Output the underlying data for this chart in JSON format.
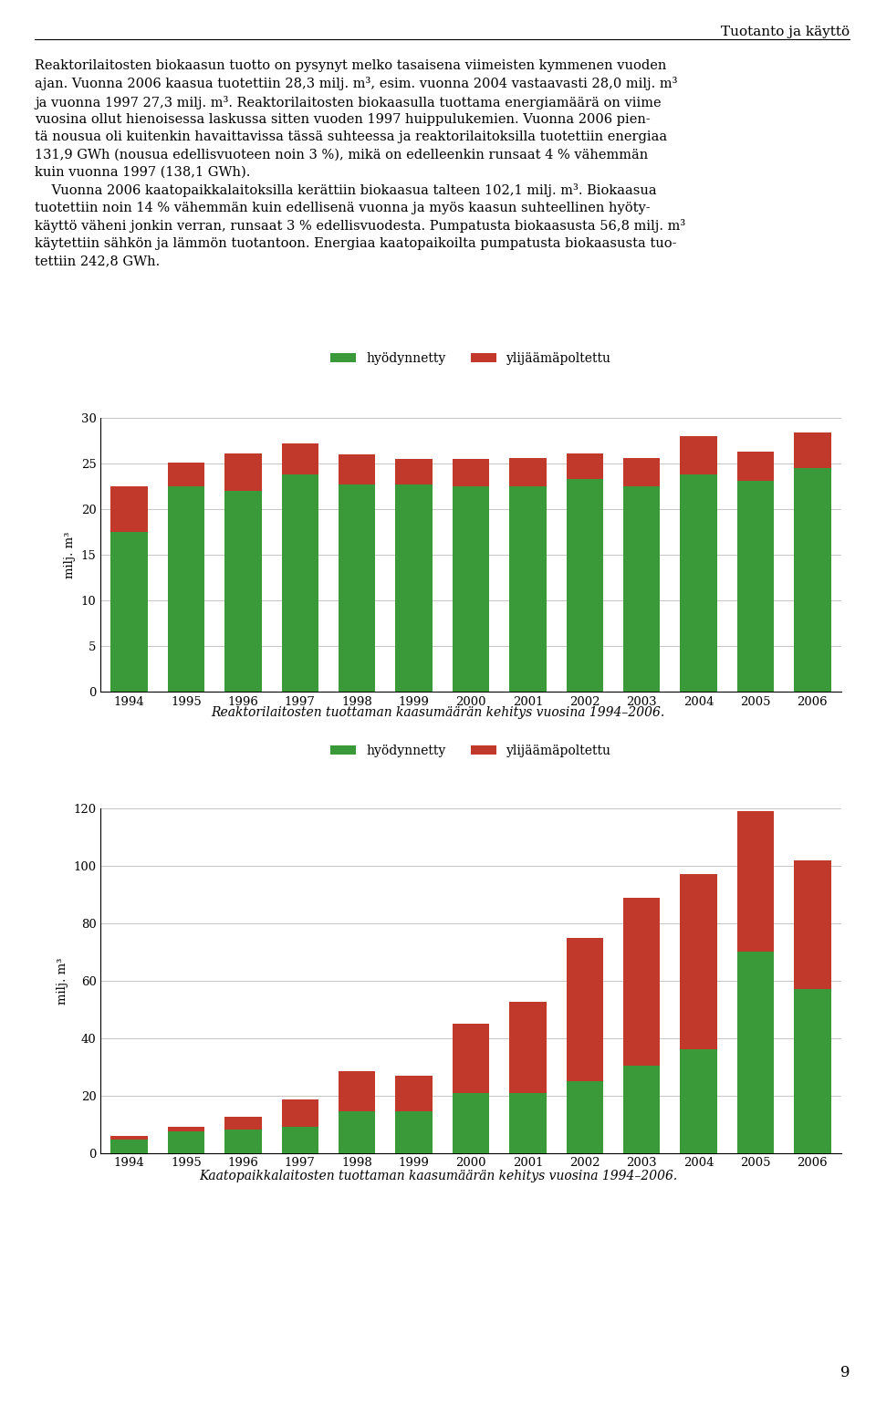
{
  "years": [
    1994,
    1995,
    1996,
    1997,
    1998,
    1999,
    2000,
    2001,
    2002,
    2003,
    2004,
    2005,
    2006
  ],
  "chart1": {
    "title": "Reaktorilaitosten tuottaman kaasumäärän kehitys vuosina 1994–2006.",
    "ylabel": "milj. m³",
    "ylim": [
      0,
      30
    ],
    "yticks": [
      0,
      5,
      10,
      15,
      20,
      25,
      30
    ],
    "green_values": [
      17.5,
      22.5,
      22.0,
      23.8,
      22.7,
      22.7,
      22.5,
      22.5,
      23.3,
      22.5,
      23.8,
      23.1,
      24.5
    ],
    "red_values": [
      5.0,
      2.6,
      4.1,
      3.4,
      3.3,
      2.8,
      3.0,
      3.1,
      2.8,
      3.1,
      4.2,
      3.2,
      3.9
    ],
    "legend_green": "hyödynnetty",
    "legend_red": "ylijäämäpoltettu",
    "green_color": "#3a9a3a",
    "red_color": "#c0392b"
  },
  "chart2": {
    "title": "Kaatopaikkalaitosten tuottaman kaasumäärän kehitys vuosina 1994–2006.",
    "ylabel": "milj. m³",
    "ylim": [
      0,
      120
    ],
    "yticks": [
      0,
      20,
      40,
      60,
      80,
      100,
      120
    ],
    "green_values": [
      4.5,
      7.5,
      8.0,
      9.0,
      14.5,
      14.5,
      21.0,
      21.0,
      25.0,
      30.5,
      36.0,
      70.0,
      57.0
    ],
    "red_values": [
      1.5,
      1.5,
      4.5,
      9.5,
      14.0,
      12.5,
      24.0,
      31.5,
      50.0,
      58.5,
      61.0,
      49.0,
      45.0
    ],
    "legend_green": "hyödynnetty",
    "legend_red": "ylijäämäpoltettu",
    "green_color": "#3a9a3a",
    "red_color": "#c0392b"
  },
  "header": "Tuotanto ja käyttö",
  "page_number": "9",
  "background_color": "#ffffff",
  "text_color": "#000000",
  "font_size_body": 10.5,
  "font_size_caption": 10,
  "font_size_axis": 9.5,
  "font_size_legend": 10,
  "font_size_header": 11
}
